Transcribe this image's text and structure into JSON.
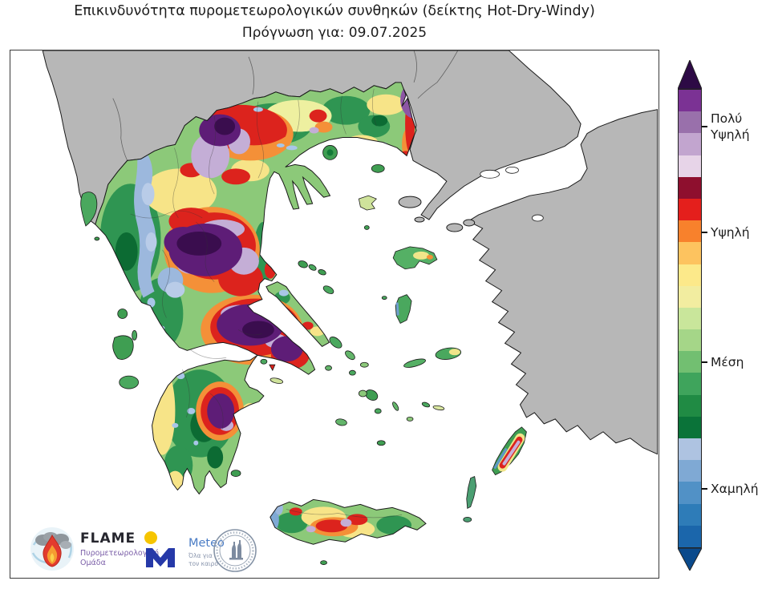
{
  "title": {
    "line1": "Επικινδυνότητα πυρομετεωρολογικών συνθηκών (δείκτης Hot-Dry-Windy)",
    "line2": "Πρόγνωση για: 09.07.2025"
  },
  "colorbar": {
    "segments": [
      "#7b3294",
      "#9970ab",
      "#c2a5cf",
      "#e7d4e8",
      "#8e0f2e",
      "#e41f1c",
      "#f8812c",
      "#fdc35f",
      "#fce98a",
      "#f2eda0",
      "#c9e69b",
      "#a5d688",
      "#72bf71",
      "#3fa45c",
      "#208b44",
      "#0a7339",
      "#aec3e1",
      "#7fa9d4",
      "#5191c6",
      "#2e7cb8",
      "#1b66ab"
    ],
    "arrow_top_color": "#2d0a45",
    "arrow_bottom_color": "#0a4a8c",
    "labels": [
      {
        "text": "Πολύ\nΥψηλή"
      },
      {
        "text": "Υψηλή"
      },
      {
        "text": "Μέση"
      },
      {
        "text": "Χαμηλή"
      }
    ]
  },
  "map": {
    "sea_color": "#ffffff",
    "neighbor_land_color": "#b7b7b7",
    "greece_base_color": "#8cc979",
    "risk_colors": {
      "very_high_purple": "#5e1d77",
      "high_red": "#dc231d",
      "high_orange": "#f49038",
      "medium_yellow": "#f7e488",
      "medium_green": "#2f9552",
      "low_blue": "#9cb8dd"
    }
  },
  "logos": {
    "flame": {
      "name": "FLAME",
      "subtitle": "Πυρομετεωρολογική Ομάδα"
    },
    "meteo": {
      "name": "Meteo",
      "subtitle": "Όλα για\nτον καιρό"
    }
  }
}
